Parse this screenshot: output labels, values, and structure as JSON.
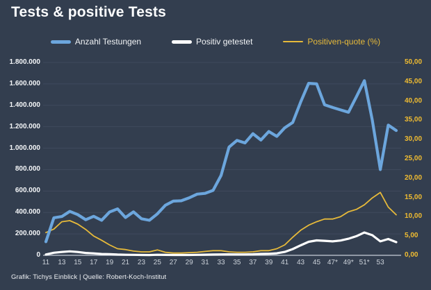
{
  "title": "Tests & positive Tests",
  "footer": "Grafik: Tichys Einblick | Quelle: Robert-Koch-Institut",
  "colors": {
    "background": "#333e4f",
    "gridline": "#48536a",
    "zero_line": "#b7bdc8",
    "tests_line": "#6ca6dd",
    "positives_line": "#ffffff",
    "quote_line": "#e7ba3a",
    "left_axis_text": "#f4f6f8",
    "right_axis_text": "#f0bc31",
    "x_axis_text": "#ccd2da"
  },
  "legend": {
    "items": [
      {
        "label": "Anzahl Testungen"
      },
      {
        "label": "Positiv getestet"
      },
      {
        "label": "Positiven-quote (%)"
      }
    ]
  },
  "chart_data": {
    "type": "line",
    "title": "Tests & positive Tests",
    "xlabel": "",
    "ylabel_left": "",
    "ylabel_right": "",
    "grid": "horizontal",
    "legend_position": "top",
    "x_tick_labels": [
      "11",
      "13",
      "15",
      "17",
      "19",
      "21",
      "23",
      "25",
      "27",
      "29",
      "31",
      "33",
      "35",
      "37",
      "39",
      "41",
      "43",
      "45",
      "47*",
      "49*",
      "51*",
      "53"
    ],
    "categories": [
      "11",
      "12",
      "13",
      "14",
      "15",
      "16",
      "17",
      "18",
      "19",
      "20",
      "21",
      "22",
      "23",
      "24",
      "25",
      "26",
      "27",
      "28",
      "29",
      "30",
      "31",
      "32",
      "33",
      "34",
      "35",
      "36",
      "37",
      "38",
      "39",
      "40",
      "41",
      "42",
      "43",
      "44",
      "45",
      "46",
      "47",
      "48",
      "49",
      "50",
      "51",
      "52",
      "53",
      "1",
      "2"
    ],
    "left_axis": {
      "min": 0,
      "max": 1800000,
      "step": 200000,
      "tick_labels": [
        "1.800.000",
        "1.600.000",
        "1.400.000",
        "1.200.000",
        "1.000.000",
        "800.000",
        "600.000",
        "400.000",
        "200.000",
        "0"
      ]
    },
    "right_axis": {
      "min": 0,
      "max": 50,
      "step": 5,
      "tick_labels": [
        "50,00",
        "45,00",
        "40,00",
        "35,00",
        "30,00",
        "25,00",
        "20,00",
        "15,00",
        "10,00",
        "5,00",
        "0,00"
      ]
    },
    "series": [
      {
        "name": "Anzahl Testungen",
        "axis": "left",
        "color": "#6ca6dd",
        "values": [
          127000,
          350000,
          362000,
          410000,
          380000,
          332000,
          364000,
          327000,
          404000,
          433000,
          353000,
          405000,
          341000,
          327000,
          387000,
          467000,
          506000,
          509000,
          537000,
          571000,
          578000,
          606000,
          745000,
          1010000,
          1072000,
          1049000,
          1135000,
          1076000,
          1155000,
          1110000,
          1190000,
          1240000,
          1430000,
          1605000,
          1600000,
          1405000,
          1380000,
          1357000,
          1335000,
          1480000,
          1630000,
          1260000,
          800000,
          1215000,
          1165000
        ]
      },
      {
        "name": "Positiv getestet",
        "axis": "left",
        "color": "#ffffff",
        "values": [
          7600,
          23800,
          31400,
          36900,
          30800,
          22100,
          18100,
          12600,
          10800,
          7200,
          5200,
          4300,
          3200,
          2800,
          5300,
          3700,
          3100,
          3000,
          3500,
          4500,
          5700,
          7300,
          8700,
          9200,
          8300,
          8200,
          10000,
          13200,
          14300,
          18700,
          31600,
          58100,
          93000,
          126000,
          139000,
          135000,
          130000,
          138000,
          155000,
          179000,
          213000,
          188000,
          130000,
          152000,
          123000
        ]
      },
      {
        "name": "Positiven-quote (%)",
        "axis": "right",
        "color": "#e7ba3a",
        "values": [
          5.9,
          6.8,
          8.7,
          9.0,
          8.1,
          6.7,
          5.0,
          3.9,
          2.7,
          1.7,
          1.5,
          1.1,
          0.9,
          0.9,
          1.4,
          0.8,
          0.6,
          0.6,
          0.7,
          0.8,
          1.0,
          1.2,
          1.2,
          0.9,
          0.8,
          0.8,
          0.9,
          1.2,
          1.2,
          1.7,
          2.7,
          4.7,
          6.5,
          7.8,
          8.7,
          9.4,
          9.4,
          10.0,
          11.3,
          11.9,
          13.1,
          14.9,
          16.3,
          12.5,
          10.5
        ]
      }
    ]
  }
}
